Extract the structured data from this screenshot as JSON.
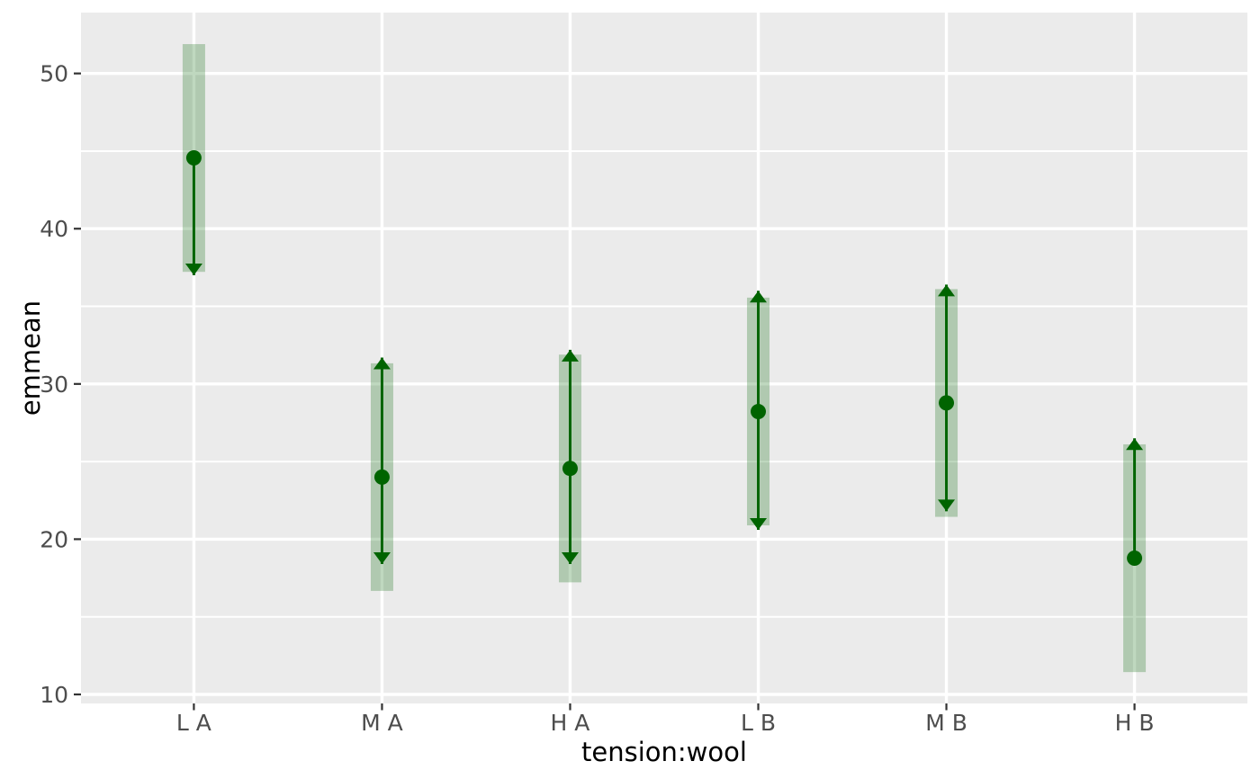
{
  "chart_data": {
    "type": "scatter",
    "subtype": "emmeans-pointrange-with-comparison-arrows",
    "title": "",
    "xlabel": "tension:wool",
    "ylabel": "emmean",
    "categories": [
      "L A",
      "M A",
      "H A",
      "L B",
      "M B",
      "H B"
    ],
    "series": [
      {
        "name": "emmean",
        "values": [
          44.56,
          24.0,
          24.56,
          28.22,
          28.78,
          18.78
        ]
      },
      {
        "name": "ci_lower",
        "values": [
          37.22,
          16.67,
          17.22,
          20.89,
          21.44,
          11.44
        ]
      },
      {
        "name": "ci_upper",
        "values": [
          51.89,
          31.33,
          31.89,
          35.56,
          36.11,
          26.11
        ]
      },
      {
        "name": "comparison_arrow_lower",
        "values": [
          37.0,
          18.4,
          18.4,
          20.6,
          21.8,
          null
        ]
      },
      {
        "name": "comparison_arrow_upper",
        "values": [
          null,
          31.7,
          32.2,
          36.0,
          36.4,
          26.5
        ]
      }
    ],
    "ylim": [
      9.42,
      53.92
    ],
    "yticks": [
      10,
      20,
      30,
      40,
      50
    ],
    "ytick_labels": [
      "10",
      "20",
      "30",
      "40",
      "50"
    ],
    "yticks_minor": [
      15,
      25,
      35,
      45
    ],
    "grid": "white major+minor horizontal lines and one white vertical line per category on grey panel",
    "legend": "none",
    "colors": {
      "panel_background": "#ebebeb",
      "gridline": "#ffffff",
      "point_and_arrow": "#006400",
      "ci_bar_fill": "#006400",
      "ci_bar_opacity": 0.25,
      "axis_text": "#4d4d4d",
      "axis_title": "#000000",
      "tick_mark": "#333333",
      "outer_background": "#ffffff"
    }
  }
}
